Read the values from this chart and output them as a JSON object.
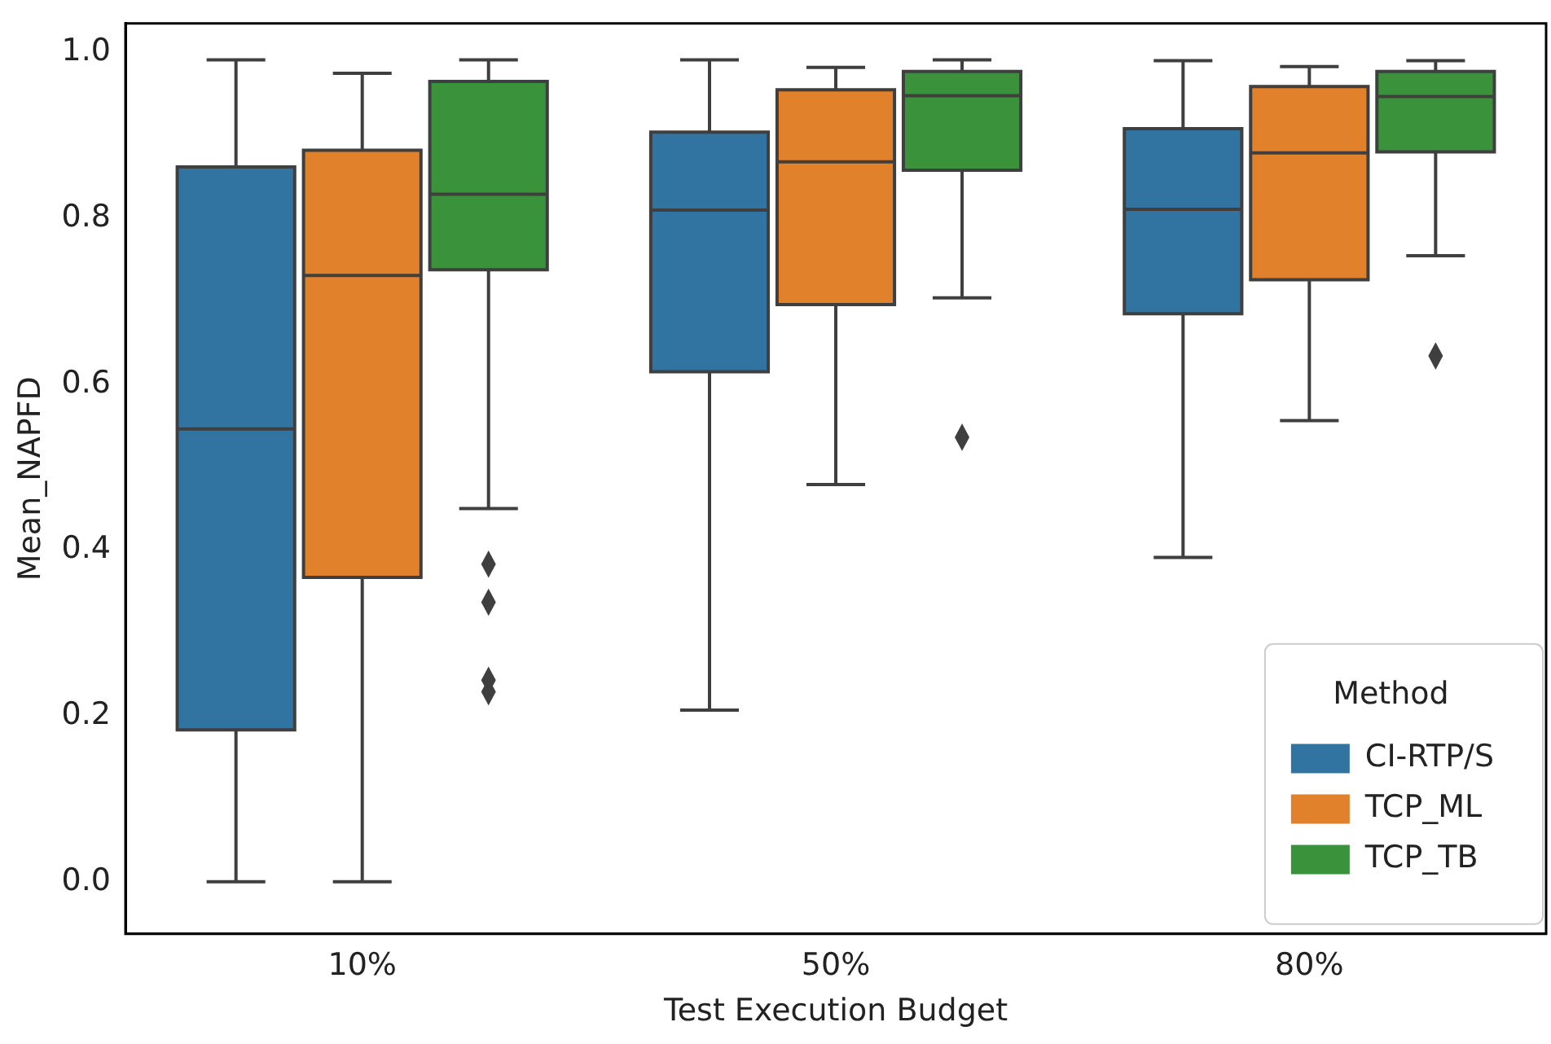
{
  "chart_data": {
    "type": "box",
    "xlabel": "Test Execution Budget",
    "ylabel": "Mean_NAPFD",
    "legend_title": "Method",
    "legend": "bottom right",
    "grid": false,
    "marker": "diamond",
    "categories": [
      "10%",
      "50%",
      "80%"
    ],
    "ylim": [
      -0.063,
      1.035
    ],
    "yticks": [
      {
        "value": 0,
        "label": "0.0"
      },
      {
        "value": 0.2,
        "label": "0.2"
      },
      {
        "value": 0.4,
        "label": "0.4"
      },
      {
        "value": 0.6,
        "label": "0.6"
      },
      {
        "value": 0.8,
        "label": "0.8"
      },
      {
        "value": 1,
        "label": "1.0"
      }
    ],
    "series": [
      {
        "name": "CI-RTP/S",
        "color": "#3274a1",
        "boxes": [
          {
            "low": 0,
            "q1": 0.183,
            "median": 0.546,
            "q3": 0.862,
            "high": 0.991
          },
          {
            "low": 0.207,
            "q1": 0.615,
            "median": 0.81,
            "q3": 0.904,
            "high": 0.991
          },
          {
            "low": 0.391,
            "q1": 0.685,
            "median": 0.811,
            "q3": 0.908,
            "high": 0.99
          }
        ]
      },
      {
        "name": "TCP_ML",
        "color": "#e1812c",
        "boxes": [
          {
            "low": 0,
            "q1": 0.367,
            "median": 0.731,
            "q3": 0.882,
            "high": 0.975
          },
          {
            "low": 0.479,
            "q1": 0.696,
            "median": 0.868,
            "q3": 0.955,
            "high": 0.982
          },
          {
            "low": 0.556,
            "q1": 0.726,
            "median": 0.879,
            "q3": 0.959,
            "high": 0.983
          }
        ]
      },
      {
        "name": "TCP_TB",
        "color": "#3a923a",
        "boxes": [
          {
            "low": 0.45,
            "q1": 0.738,
            "median": 0.829,
            "q3": 0.965,
            "high": 0.991,
            "outliers": [
              0.383,
              0.337,
              0.243,
              0.229
            ]
          },
          {
            "low": 0.704,
            "q1": 0.858,
            "median": 0.948,
            "q3": 0.977,
            "high": 0.991,
            "outliers": [
              0.536
            ]
          },
          {
            "low": 0.755,
            "q1": 0.88,
            "median": 0.947,
            "q3": 0.977,
            "high": 0.99,
            "outliers": [
              0.634
            ]
          }
        ]
      }
    ]
  }
}
